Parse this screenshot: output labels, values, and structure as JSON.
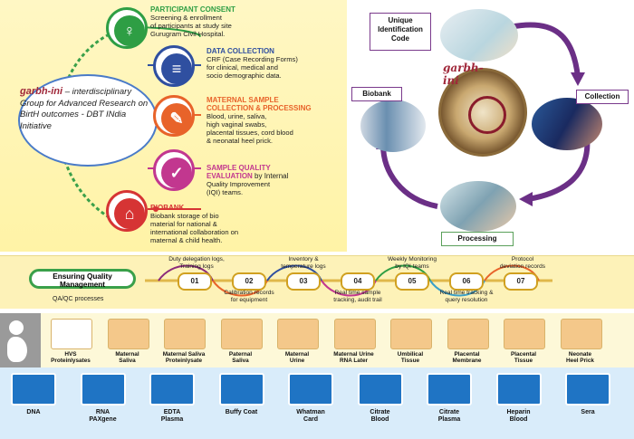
{
  "consent": {
    "steps": [
      {
        "title": "PARTICIPANT CONSENT",
        "desc": "Screening & enrollment\nof participants at study site\nGurugram Civil Hospital.",
        "color": "#2e9e44",
        "icon": "pregnant-woman-icon"
      },
      {
        "title": "DATA COLLECTION",
        "desc": "CRF (Case Recording Forms)\nfor clinical, medical and\nsocio demographic data.",
        "color": "#2f4fa0",
        "icon": "document-icon"
      },
      {
        "title": "MATERNAL SAMPLE\nCOLLECTION & PROCESSING",
        "desc": "Blood, urine, saliva,\nhigh vaginal swabs,\nplacental tissues, cord blood\n& neonatal heel prick.",
        "color": "#e8632a",
        "icon": "syringe-icon"
      },
      {
        "title": "SAMPLE QUALITY\nEVALUATION",
        "title_suffix": " by Internal",
        "desc": "Quality Improvement\n(IQI) teams.",
        "color": "#c2378f",
        "icon": "checkmark-icon"
      },
      {
        "title": "BIOBANK",
        "desc": "Biobank storage of bio\nmaterial for national &\ninternational collaboration on\nmaternal & child health.",
        "color": "#d63434",
        "icon": "house-icon"
      }
    ],
    "center_text_1": "garbh-ini",
    "center_text_2": " – interdisciplinary Group for Advanced Research on BirtH outcomes - DBT INdia Initiative"
  },
  "cycle": {
    "unique_id": "Unique\nIdentification\nCode",
    "collection": "Collection",
    "processing": "Processing",
    "biobank": "Biobank",
    "logo_text": "garbh-ini"
  },
  "qa": {
    "title": "Ensuring Quality\nManagement",
    "subtitle": "QA/QC processes",
    "steps": [
      {
        "num": "01",
        "top": "Duty delegation logs,\nTraining logs",
        "bottom": ""
      },
      {
        "num": "02",
        "top": "",
        "bottom": "Calibration records\nfor equipment"
      },
      {
        "num": "03",
        "top": "Inventory &\ntemperature logs",
        "bottom": ""
      },
      {
        "num": "04",
        "top": "",
        "bottom": "Real time sample\ntracking, audit trail"
      },
      {
        "num": "05",
        "top": "Weekly Monitoring\nby IQI teams",
        "bottom": ""
      },
      {
        "num": "06",
        "top": "",
        "bottom": "Real time tracking &\nquery resolution"
      },
      {
        "num": "07",
        "top": "Protocol\ndeviation records",
        "bottom": ""
      }
    ]
  },
  "samples": [
    {
      "label": "HVS\nProteinlysates",
      "icon": "swab-icon"
    },
    {
      "label": "Maternal\nSaliva",
      "icon": "lips-icon"
    },
    {
      "label": "Maternal Saliva\nProteinlysate",
      "icon": "tubes-icon"
    },
    {
      "label": "Paternal\nSaliva",
      "icon": "man-icon"
    },
    {
      "label": "Maternal\nUrine",
      "icon": "urine-cup-icon"
    },
    {
      "label": "Maternal Urine\nRNA Later",
      "icon": "tube-rack-icon"
    },
    {
      "label": "Umbilical\nTissue",
      "icon": "umbilical-icon"
    },
    {
      "label": "Placental\nMembrane",
      "icon": "membrane-icon"
    },
    {
      "label": "Placental\nTissue",
      "icon": "placenta-icon"
    },
    {
      "label": "Neonate\nHeel Prick",
      "icon": "foot-icon"
    }
  ],
  "lab": [
    {
      "label": "DNA",
      "icon": "dna-icon"
    },
    {
      "label": "RNA\nPAXgene",
      "icon": "rna-tube-icon"
    },
    {
      "label": "EDTA\nPlasma",
      "icon": "blood-bag-icon"
    },
    {
      "label": "Buffy Coat",
      "icon": "buffy-coat-icon"
    },
    {
      "label": "Whatman\nCard",
      "icon": "card-icon"
    },
    {
      "label": "Citrate\nBlood",
      "icon": "citrate-blood-icon"
    },
    {
      "label": "Citrate\nPlasma",
      "icon": "citrate-plasma-icon"
    },
    {
      "label": "Heparin\nBlood",
      "icon": "heparin-blood-icon"
    },
    {
      "label": "Sera",
      "icon": "sera-icon"
    }
  ]
}
